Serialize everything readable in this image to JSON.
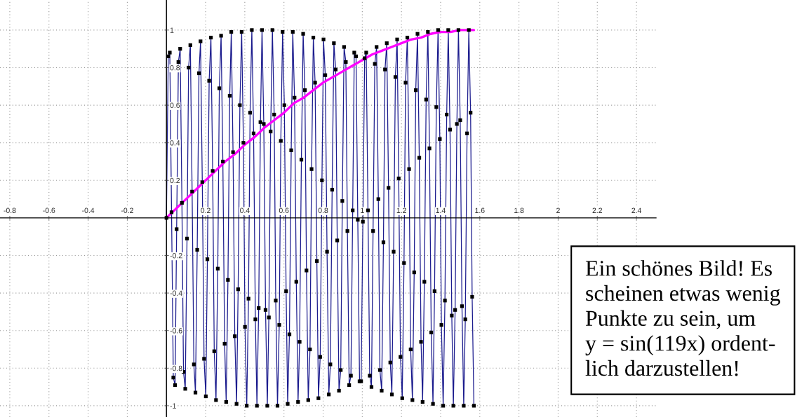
{
  "chart_data": {
    "type": "line",
    "xlim": [
      -0.85,
      2.5
    ],
    "ylim": [
      -1.06,
      1.16
    ],
    "xticks": [
      -0.8,
      -0.6,
      -0.4,
      -0.2,
      0.2,
      0.4,
      0.6,
      0.8,
      1,
      1.2,
      1.4,
      1.6,
      1.8,
      2,
      2.2,
      2.4
    ],
    "yticks": [
      -1,
      -0.8,
      -0.6,
      -0.4,
      -0.2,
      0.2,
      0.4,
      0.6,
      0.8,
      1
    ],
    "grid": true,
    "annotations": [
      "Ein schönes Bild! Es\nscheinen etwas wenig\nPunkte zu sein, um\ny = sin(119x) ordent-\nlich darzustellen!"
    ],
    "series": [
      {
        "color": "#1c1c8e",
        "x": [
          0,
          0.009,
          0.017,
          0.026,
          0.035,
          0.044,
          0.052,
          0.061,
          0.07,
          0.079,
          0.087,
          0.096,
          0.105,
          0.113,
          0.122,
          0.131,
          0.14,
          0.148,
          0.157,
          0.166,
          0.174,
          0.183,
          0.192,
          0.201,
          0.209,
          0.218,
          0.227,
          0.236,
          0.244,
          0.253,
          0.262,
          0.27,
          0.279,
          0.288,
          0.297,
          0.305,
          0.314,
          0.323,
          0.331,
          0.34,
          0.349,
          0.358,
          0.366,
          0.375,
          0.384,
          0.393,
          0.401,
          0.41,
          0.419,
          0.427,
          0.436,
          0.445,
          0.454,
          0.462,
          0.471,
          0.48,
          0.488,
          0.497,
          0.506,
          0.515,
          0.523,
          0.532,
          0.541,
          0.55,
          0.558,
          0.567,
          0.576,
          0.584,
          0.593,
          0.602,
          0.611,
          0.619,
          0.628,
          0.637,
          0.645,
          0.654,
          0.663,
          0.672,
          0.68,
          0.689,
          0.698,
          0.707,
          0.715,
          0.724,
          0.733,
          0.741,
          0.75,
          0.759,
          0.768,
          0.776,
          0.785,
          0.794,
          0.802,
          0.811,
          0.82,
          0.829,
          0.837,
          0.846,
          0.855,
          0.864,
          0.872,
          0.881,
          0.89,
          0.898,
          0.907,
          0.916,
          0.924,
          0.933,
          0.942,
          0.951,
          0.959,
          0.968,
          0.977,
          0.986,
          0.994,
          1.003,
          1.012,
          1.02,
          1.029,
          1.038,
          1.047,
          1.055,
          1.064,
          1.073,
          1.082,
          1.09,
          1.099,
          1.108,
          1.116,
          1.125,
          1.134,
          1.143,
          1.151,
          1.16,
          1.169,
          1.178,
          1.186,
          1.195,
          1.204,
          1.213,
          1.221,
          1.23,
          1.239,
          1.247,
          1.256,
          1.265,
          1.273,
          1.282,
          1.291,
          1.3,
          1.308,
          1.317,
          1.326,
          1.335,
          1.343,
          1.352,
          1.361,
          1.369,
          1.378,
          1.387,
          1.396,
          1.404,
          1.413,
          1.422,
          1.431,
          1.439,
          1.448,
          1.457,
          1.465,
          1.474,
          1.483,
          1.491,
          1.5,
          1.509,
          1.518,
          1.526,
          1.535,
          1.544,
          1.553,
          1.561,
          1.57
        ],
        "values": [
          0,
          0.86,
          0.88,
          0.03,
          -0.85,
          -0.89,
          -0.06,
          0.83,
          0.9,
          0.08,
          -0.82,
          -0.91,
          -0.11,
          0.8,
          0.92,
          0.14,
          -0.78,
          -0.93,
          -0.17,
          0.77,
          0.94,
          0.19,
          -0.75,
          -0.95,
          -0.22,
          0.73,
          0.96,
          0.25,
          -0.71,
          -0.97,
          -0.27,
          0.69,
          0.97,
          0.3,
          -0.67,
          -0.98,
          -0.33,
          0.65,
          0.99,
          0.35,
          -0.63,
          -0.99,
          -0.38,
          0.6,
          0.99,
          0.4,
          -0.58,
          -1.0,
          -0.43,
          0.56,
          1.0,
          0.45,
          -0.54,
          -1.0,
          -0.48,
          0.51,
          1.0,
          0.5,
          -0.49,
          -1.0,
          -0.53,
          0.46,
          1.0,
          0.55,
          -0.44,
          -1.0,
          -0.57,
          0.41,
          0.99,
          0.6,
          -0.39,
          -0.99,
          -0.62,
          0.36,
          0.99,
          0.64,
          -0.34,
          -0.98,
          -0.66,
          0.31,
          0.98,
          0.68,
          -0.28,
          -0.97,
          -0.7,
          0.26,
          0.96,
          0.72,
          -0.23,
          -0.96,
          -0.74,
          0.2,
          0.95,
          0.76,
          -0.18,
          -0.94,
          -0.78,
          0.15,
          0.93,
          0.79,
          -0.12,
          -0.92,
          -0.81,
          0.09,
          0.91,
          0.83,
          -0.07,
          -0.89,
          -0.84,
          0.04,
          0.88,
          0.86,
          -0.01,
          -0.87,
          -0.87,
          -0.02,
          0.85,
          0.88,
          0.04,
          -0.84,
          -0.9,
          -0.07,
          0.82,
          0.91,
          0.1,
          -0.81,
          -0.92,
          -0.13,
          0.79,
          0.93,
          0.16,
          -0.77,
          -0.94,
          -0.18,
          0.75,
          0.95,
          0.21,
          -0.74,
          -0.96,
          -0.24,
          0.72,
          0.96,
          0.26,
          -0.7,
          -0.97,
          -0.29,
          0.68,
          0.98,
          0.32,
          -0.66,
          -0.98,
          -0.34,
          0.63,
          0.99,
          0.37,
          -0.61,
          -0.99,
          -0.39,
          0.59,
          1.0,
          0.42,
          -0.57,
          -1.0,
          -0.44,
          0.55,
          1.0,
          0.47,
          -0.52,
          -1.0,
          -0.49,
          0.5,
          1.0,
          0.52,
          -0.47,
          -1.0,
          -0.54,
          0.45,
          1.0,
          0.56,
          -0.42,
          -1.0
        ]
      },
      {
        "color": "#ff00ff",
        "x": [
          0,
          0.05,
          0.1,
          0.15,
          0.2,
          0.25,
          0.3,
          0.35,
          0.4,
          0.45,
          0.5,
          0.55,
          0.6,
          0.65,
          0.7,
          0.75,
          0.8,
          0.85,
          0.9,
          0.95,
          1.0,
          1.05,
          1.1,
          1.15,
          1.2,
          1.25,
          1.3,
          1.35,
          1.4,
          1.45,
          1.5,
          1.55,
          1.57
        ],
        "values": [
          0,
          0.05,
          0.1,
          0.15,
          0.2,
          0.25,
          0.3,
          0.34,
          0.39,
          0.43,
          0.48,
          0.52,
          0.56,
          0.61,
          0.64,
          0.68,
          0.72,
          0.75,
          0.78,
          0.81,
          0.84,
          0.87,
          0.89,
          0.91,
          0.93,
          0.95,
          0.96,
          0.98,
          0.99,
          0.99,
          1.0,
          1.0,
          1.0
        ]
      },
      {
        "type": "scatter",
        "color": "#000000",
        "marker": "square",
        "x": [
          0,
          0.009,
          0.017,
          0.026,
          0.035,
          0.044,
          0.052,
          0.061,
          0.07,
          0.079,
          0.087,
          0.096,
          0.105,
          0.113,
          0.122,
          0.131,
          0.14,
          0.148,
          0.157,
          0.166,
          0.174,
          0.183,
          0.192,
          0.201,
          0.209,
          0.218,
          0.227,
          0.236,
          0.244,
          0.253,
          0.262,
          0.27,
          0.279,
          0.288,
          0.297,
          0.305,
          0.314,
          0.323,
          0.331,
          0.34,
          0.349,
          0.358,
          0.366,
          0.375,
          0.384,
          0.393,
          0.401,
          0.41,
          0.419,
          0.427,
          0.436,
          0.445,
          0.454,
          0.462,
          0.471,
          0.48,
          0.488,
          0.497,
          0.506,
          0.515,
          0.523,
          0.532,
          0.541,
          0.55,
          0.558,
          0.567,
          0.576,
          0.584,
          0.593,
          0.602,
          0.611,
          0.619,
          0.628,
          0.637,
          0.645,
          0.654,
          0.663,
          0.672,
          0.68,
          0.689,
          0.698,
          0.707,
          0.715,
          0.724,
          0.733,
          0.741,
          0.75,
          0.759,
          0.768,
          0.776,
          0.785,
          0.794,
          0.802,
          0.811,
          0.82,
          0.829,
          0.837,
          0.846,
          0.855,
          0.864,
          0.872,
          0.881,
          0.89,
          0.898,
          0.907,
          0.916,
          0.924,
          0.933,
          0.942,
          0.951,
          0.959,
          0.968,
          0.977,
          0.986,
          0.994,
          1.003,
          1.012,
          1.02,
          1.029,
          1.038,
          1.047,
          1.055,
          1.064,
          1.073,
          1.082,
          1.09,
          1.099,
          1.108,
          1.116,
          1.125,
          1.134,
          1.143,
          1.151,
          1.16,
          1.169,
          1.178,
          1.186,
          1.195,
          1.204,
          1.213,
          1.221,
          1.23,
          1.239,
          1.247,
          1.256,
          1.265,
          1.273,
          1.282,
          1.291,
          1.3,
          1.308,
          1.317,
          1.326,
          1.335,
          1.343,
          1.352,
          1.361,
          1.369,
          1.378,
          1.387,
          1.396,
          1.404,
          1.413,
          1.422,
          1.431,
          1.439,
          1.448,
          1.457,
          1.465,
          1.474,
          1.483,
          1.491,
          1.5,
          1.509,
          1.518,
          1.526,
          1.535,
          1.544,
          1.553,
          1.561,
          1.57
        ],
        "values": [
          0,
          0.86,
          0.88,
          0.03,
          -0.85,
          -0.89,
          -0.06,
          0.83,
          0.9,
          0.08,
          -0.82,
          -0.91,
          -0.11,
          0.8,
          0.92,
          0.14,
          -0.78,
          -0.93,
          -0.17,
          0.77,
          0.94,
          0.19,
          -0.75,
          -0.95,
          -0.22,
          0.73,
          0.96,
          0.25,
          -0.71,
          -0.97,
          -0.27,
          0.69,
          0.97,
          0.3,
          -0.67,
          -0.98,
          -0.33,
          0.65,
          0.99,
          0.35,
          -0.63,
          -0.99,
          -0.38,
          0.6,
          0.99,
          0.4,
          -0.58,
          -1.0,
          -0.43,
          0.56,
          1.0,
          0.45,
          -0.54,
          -1.0,
          -0.48,
          0.51,
          1.0,
          0.5,
          -0.49,
          -1.0,
          -0.53,
          0.46,
          1.0,
          0.55,
          -0.44,
          -1.0,
          -0.57,
          0.41,
          0.99,
          0.6,
          -0.39,
          -0.99,
          -0.62,
          0.36,
          0.99,
          0.64,
          -0.34,
          -0.98,
          -0.66,
          0.31,
          0.98,
          0.68,
          -0.28,
          -0.97,
          -0.7,
          0.26,
          0.96,
          0.72,
          -0.23,
          -0.96,
          -0.74,
          0.2,
          0.95,
          0.76,
          -0.18,
          -0.94,
          -0.78,
          0.15,
          0.93,
          0.79,
          -0.12,
          -0.92,
          -0.81,
          0.09,
          0.91,
          0.83,
          -0.07,
          -0.89,
          -0.84,
          0.04,
          0.88,
          0.86,
          -0.01,
          -0.87,
          -0.87,
          -0.02,
          0.85,
          0.88,
          0.04,
          -0.84,
          -0.9,
          -0.07,
          0.82,
          0.91,
          0.1,
          -0.81,
          -0.92,
          -0.13,
          0.79,
          0.93,
          0.16,
          -0.77,
          -0.94,
          -0.18,
          0.75,
          0.95,
          0.21,
          -0.74,
          -0.96,
          -0.24,
          0.72,
          0.96,
          0.26,
          -0.7,
          -0.97,
          -0.29,
          0.68,
          0.98,
          0.32,
          -0.66,
          -0.98,
          -0.34,
          0.63,
          0.99,
          0.37,
          -0.61,
          -0.99,
          -0.39,
          0.59,
          1.0,
          0.42,
          -0.57,
          -1.0,
          -0.44,
          0.55,
          1.0,
          0.47,
          -0.52,
          -1.0,
          -0.49,
          0.5,
          1.0,
          0.52,
          -0.47,
          -1.0,
          -0.54,
          0.45,
          1.0,
          0.56,
          -0.42,
          -1.0
        ]
      }
    ]
  }
}
